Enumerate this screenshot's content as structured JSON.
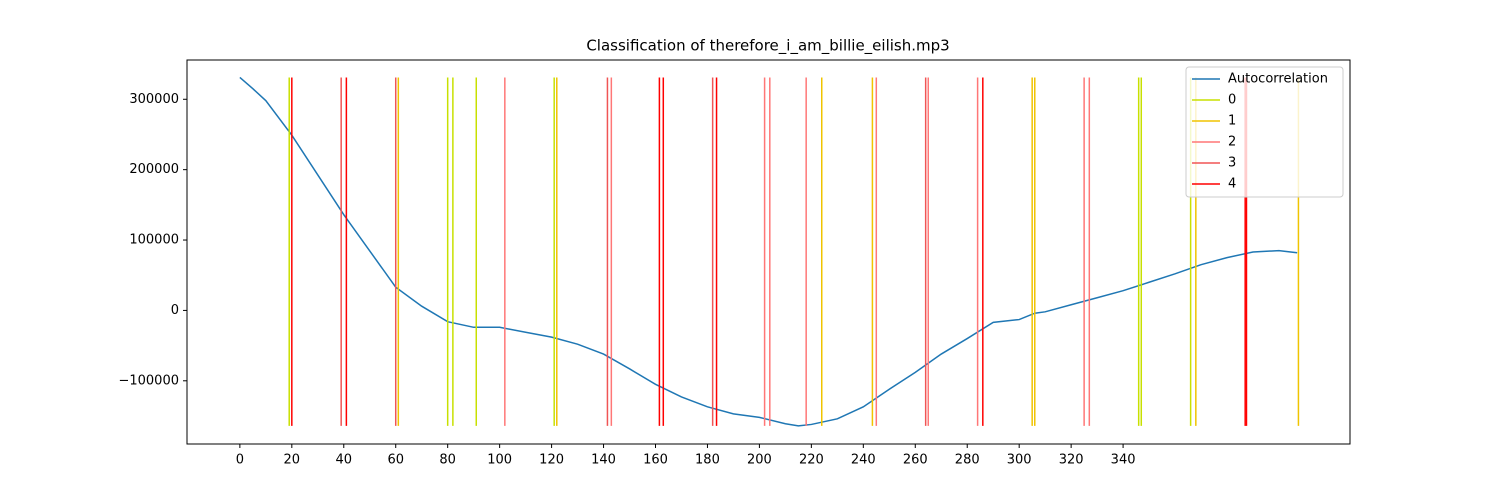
{
  "chart_data": {
    "type": "line",
    "title": "Classification of therefore_i_am_billie_eilish.mp3",
    "xlim": [
      -20.35,
      427.35
    ],
    "ylim": [
      -189800,
      355800
    ],
    "xticks": [
      0,
      20,
      40,
      60,
      80,
      100,
      120,
      140,
      160,
      180,
      200,
      220,
      240,
      260,
      280,
      300,
      320,
      340
    ],
    "yticks": [
      {
        "value": -100000,
        "label": "−100000"
      },
      0,
      100000,
      200000,
      300000
    ],
    "vline_span": [
      -164000,
      331000
    ],
    "legend": "upper right",
    "series": [
      {
        "name": "Autocorrelation",
        "color": "#1f77b4",
        "x": [
          0,
          5,
          10,
          20,
          40,
          60,
          70,
          80,
          90,
          100,
          110,
          120,
          130,
          140,
          150,
          160,
          170,
          180,
          190,
          200,
          210,
          215,
          220,
          230,
          240,
          250,
          260,
          270,
          280,
          290,
          300,
          306,
          310,
          320,
          330,
          340,
          350,
          360,
          370,
          380,
          390,
          400,
          407
        ],
        "values": [
          331000,
          315000,
          298000,
          249000,
          136000,
          33000,
          6000,
          -16000,
          -24000,
          -24000,
          -31000,
          -38000,
          -48000,
          -62000,
          -83000,
          -105000,
          -123000,
          -137000,
          -147000,
          -152000,
          -161000,
          -164000,
          -162000,
          -154000,
          -137000,
          -112000,
          -88000,
          -62000,
          -40000,
          -17000,
          -13000,
          -4000,
          -2000,
          8000,
          18000,
          28000,
          40000,
          52000,
          65000,
          75000,
          83000,
          85000,
          82000
        ]
      },
      {
        "name": "0",
        "color": "#c8e000",
        "x": [
          19,
          80,
          82,
          91,
          121,
          346,
          347,
          366
        ]
      },
      {
        "name": "1",
        "color": "#f0c400",
        "x": [
          61,
          122,
          224,
          243.5,
          305,
          306,
          368,
          407.5
        ]
      },
      {
        "name": "2",
        "color": "#ff7777",
        "x": [
          102,
          143,
          202,
          204,
          218,
          245,
          265,
          284,
          325,
          327
        ]
      },
      {
        "name": "3",
        "color": "#f05555",
        "x": [
          39,
          60,
          141.5,
          182,
          264
        ]
      },
      {
        "name": "4",
        "color": "#ff0000",
        "x": [
          20,
          41,
          161.5,
          163,
          183.5,
          286,
          387,
          387.5
        ]
      }
    ]
  }
}
